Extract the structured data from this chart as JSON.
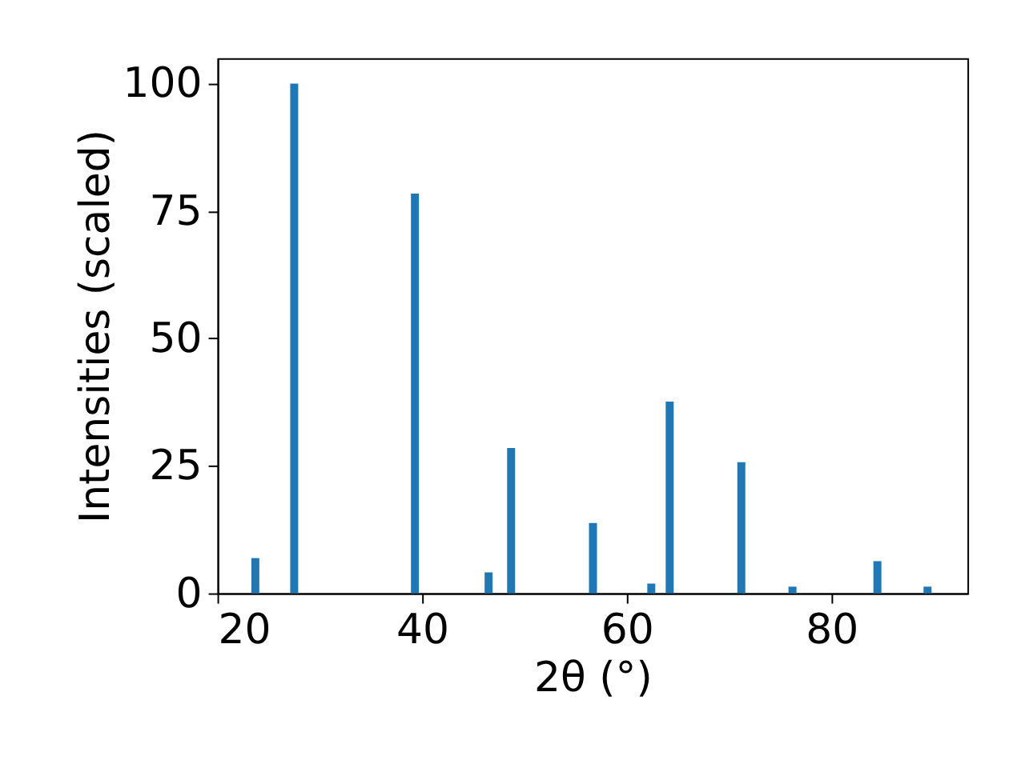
{
  "chart_data": {
    "type": "bar",
    "xlabel": "2θ (°)",
    "ylabel": "Intensities (scaled)",
    "color": "#1f77b4",
    "x": [
      23.7,
      27.5,
      39.3,
      46.5,
      48.7,
      56.7,
      62.4,
      64.2,
      71.2,
      76.2,
      84.5,
      89.4
    ],
    "values": [
      6.9,
      100,
      78.4,
      4.1,
      28.5,
      13.8,
      1.9,
      37.6,
      25.7,
      1.3,
      6.3,
      1.3
    ],
    "xlim": [
      20,
      93.3
    ],
    "xticks": [
      20,
      40,
      60,
      80
    ],
    "ylim": [
      0,
      105
    ],
    "yticks": [
      0,
      25,
      50,
      75,
      100
    ],
    "grid": false
  }
}
